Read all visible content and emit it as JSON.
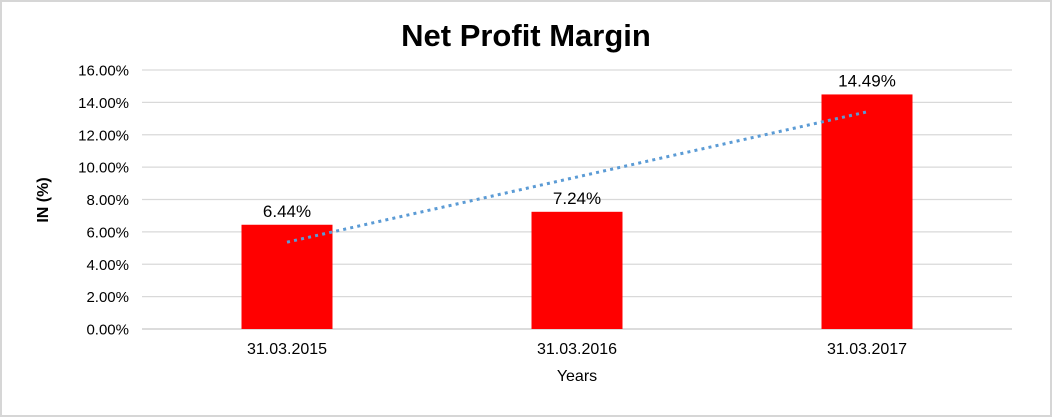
{
  "chart_data": {
    "type": "bar",
    "title": "Net Profit Margin",
    "xlabel": "Years",
    "ylabel": "IN (%)",
    "categories": [
      "31.03.2015",
      "31.03.2016",
      "31.03.2017"
    ],
    "values": [
      6.44,
      7.24,
      14.49
    ],
    "data_labels": [
      "6.44%",
      "7.24%",
      "14.49%"
    ],
    "ylim": [
      0,
      16
    ],
    "ytick_step": 2,
    "ytick_labels": [
      "0.00%",
      "2.00%",
      "4.00%",
      "6.00%",
      "8.00%",
      "10.00%",
      "12.00%",
      "14.00%",
      "16.00%"
    ],
    "grid": true,
    "legend": "none",
    "bar_color": "#ff0000",
    "gridline_color": "#d9d9d9",
    "axis_line_color": "#c6c6c6",
    "text_color": "#000000",
    "trendline": {
      "type": "linear",
      "style": "dotted",
      "color": "#5b9bd5"
    }
  }
}
